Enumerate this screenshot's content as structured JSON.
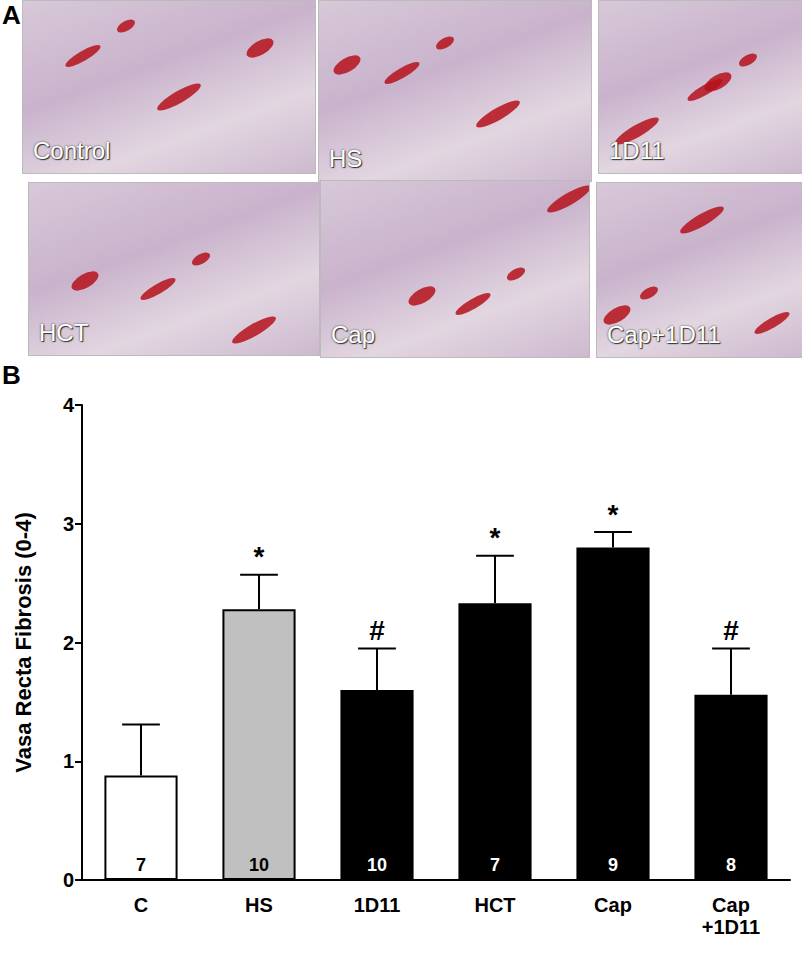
{
  "panel_a": {
    "label": "A",
    "images": [
      "Control",
      "HS",
      "1D11",
      "HCT",
      "Cap",
      "Cap+1D11"
    ]
  },
  "chart_data": {
    "panel_label": "B",
    "type": "bar",
    "y_label": "Vasa Recta Fibrosis (0-4)",
    "categories": [
      "C",
      "HS",
      "1D11",
      "HCT",
      "Cap",
      "Cap\n+1D11"
    ],
    "values": [
      0.88,
      2.28,
      1.6,
      2.33,
      2.8,
      1.56
    ],
    "errors": [
      0.43,
      0.29,
      0.35,
      0.4,
      0.13,
      0.39
    ],
    "n": [
      7,
      10,
      10,
      7,
      9,
      8
    ],
    "significance": [
      null,
      "*",
      "#",
      "*",
      "*",
      "#"
    ],
    "colors": [
      "#ffffff",
      "#c0c0c0",
      "#000000",
      "#000000",
      "#000000",
      "#000000"
    ],
    "ylim": [
      0,
      4
    ],
    "yticks": [
      0,
      1,
      2,
      3,
      4
    ],
    "grid": false
  }
}
